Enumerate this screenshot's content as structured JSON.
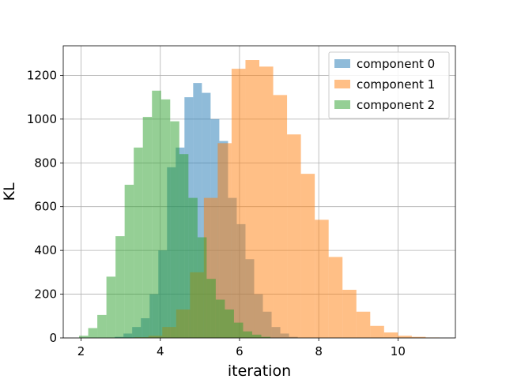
{
  "chart_data": {
    "type": "histogram",
    "xlabel": "iteration",
    "ylabel": "KL",
    "xlim": [
      1.55,
      11.45
    ],
    "ylim": [
      0,
      1335
    ],
    "xticks": [
      2,
      4,
      6,
      8,
      10
    ],
    "yticks": [
      0,
      200,
      400,
      600,
      800,
      1000,
      1200
    ],
    "grid": true,
    "legend_position": "top-right",
    "series": [
      {
        "name": "component 0",
        "color": "#1f77b4",
        "opacity": 0.5,
        "bins": [
          {
            "x0": 2.85,
            "x1": 3.07,
            "count": 5
          },
          {
            "x0": 3.07,
            "x1": 3.29,
            "count": 20
          },
          {
            "x0": 3.29,
            "x1": 3.51,
            "count": 50
          },
          {
            "x0": 3.51,
            "x1": 3.73,
            "count": 90
          },
          {
            "x0": 3.73,
            "x1": 3.95,
            "count": 200
          },
          {
            "x0": 3.95,
            "x1": 4.17,
            "count": 400
          },
          {
            "x0": 4.17,
            "x1": 4.39,
            "count": 780
          },
          {
            "x0": 4.39,
            "x1": 4.61,
            "count": 870
          },
          {
            "x0": 4.61,
            "x1": 4.83,
            "count": 1100
          },
          {
            "x0": 4.83,
            "x1": 5.05,
            "count": 1165
          },
          {
            "x0": 5.05,
            "x1": 5.27,
            "count": 1120
          },
          {
            "x0": 5.27,
            "x1": 5.49,
            "count": 1000
          },
          {
            "x0": 5.49,
            "x1": 5.71,
            "count": 900
          },
          {
            "x0": 5.71,
            "x1": 5.93,
            "count": 640
          },
          {
            "x0": 5.93,
            "x1": 6.15,
            "count": 520
          },
          {
            "x0": 6.15,
            "x1": 6.37,
            "count": 360
          },
          {
            "x0": 6.37,
            "x1": 6.59,
            "count": 200
          },
          {
            "x0": 6.59,
            "x1": 6.81,
            "count": 120
          },
          {
            "x0": 6.81,
            "x1": 7.03,
            "count": 50
          },
          {
            "x0": 7.03,
            "x1": 7.25,
            "count": 20
          },
          {
            "x0": 7.25,
            "x1": 7.47,
            "count": 5
          }
        ]
      },
      {
        "name": "component 1",
        "color": "#ff7f0e",
        "opacity": 0.5,
        "bins": [
          {
            "x0": 3.35,
            "x1": 3.7,
            "count": 3
          },
          {
            "x0": 3.7,
            "x1": 4.05,
            "count": 10
          },
          {
            "x0": 4.05,
            "x1": 4.4,
            "count": 50
          },
          {
            "x0": 4.4,
            "x1": 4.75,
            "count": 130
          },
          {
            "x0": 4.75,
            "x1": 5.1,
            "count": 300
          },
          {
            "x0": 5.1,
            "x1": 5.45,
            "count": 640
          },
          {
            "x0": 5.45,
            "x1": 5.8,
            "count": 890
          },
          {
            "x0": 5.8,
            "x1": 6.15,
            "count": 1230
          },
          {
            "x0": 6.15,
            "x1": 6.5,
            "count": 1270
          },
          {
            "x0": 6.5,
            "x1": 6.85,
            "count": 1240
          },
          {
            "x0": 6.85,
            "x1": 7.2,
            "count": 1110
          },
          {
            "x0": 7.2,
            "x1": 7.55,
            "count": 930
          },
          {
            "x0": 7.55,
            "x1": 7.9,
            "count": 750
          },
          {
            "x0": 7.9,
            "x1": 8.25,
            "count": 540
          },
          {
            "x0": 8.25,
            "x1": 8.6,
            "count": 370
          },
          {
            "x0": 8.6,
            "x1": 8.95,
            "count": 220
          },
          {
            "x0": 8.95,
            "x1": 9.3,
            "count": 120
          },
          {
            "x0": 9.3,
            "x1": 9.65,
            "count": 55
          },
          {
            "x0": 9.65,
            "x1": 10.0,
            "count": 25
          },
          {
            "x0": 10.0,
            "x1": 10.35,
            "count": 10
          },
          {
            "x0": 10.35,
            "x1": 10.7,
            "count": 5
          },
          {
            "x0": 10.7,
            "x1": 11.05,
            "count": 2
          }
        ]
      },
      {
        "name": "component 2",
        "color": "#2ca02c",
        "opacity": 0.5,
        "bins": [
          {
            "x0": 1.95,
            "x1": 2.18,
            "count": 10
          },
          {
            "x0": 2.18,
            "x1": 2.41,
            "count": 45
          },
          {
            "x0": 2.41,
            "x1": 2.64,
            "count": 105
          },
          {
            "x0": 2.64,
            "x1": 2.87,
            "count": 280
          },
          {
            "x0": 2.87,
            "x1": 3.1,
            "count": 465
          },
          {
            "x0": 3.1,
            "x1": 3.33,
            "count": 700
          },
          {
            "x0": 3.33,
            "x1": 3.56,
            "count": 870
          },
          {
            "x0": 3.56,
            "x1": 3.79,
            "count": 1010
          },
          {
            "x0": 3.79,
            "x1": 4.02,
            "count": 1130
          },
          {
            "x0": 4.02,
            "x1": 4.25,
            "count": 1090
          },
          {
            "x0": 4.25,
            "x1": 4.48,
            "count": 990
          },
          {
            "x0": 4.48,
            "x1": 4.71,
            "count": 840
          },
          {
            "x0": 4.71,
            "x1": 4.94,
            "count": 640
          },
          {
            "x0": 4.94,
            "x1": 5.17,
            "count": 460
          },
          {
            "x0": 5.17,
            "x1": 5.4,
            "count": 270
          },
          {
            "x0": 5.4,
            "x1": 5.63,
            "count": 175
          },
          {
            "x0": 5.63,
            "x1": 5.86,
            "count": 130
          },
          {
            "x0": 5.86,
            "x1": 6.09,
            "count": 70
          },
          {
            "x0": 6.09,
            "x1": 6.32,
            "count": 30
          },
          {
            "x0": 6.32,
            "x1": 6.55,
            "count": 15
          },
          {
            "x0": 6.55,
            "x1": 6.78,
            "count": 5
          }
        ]
      }
    ]
  }
}
